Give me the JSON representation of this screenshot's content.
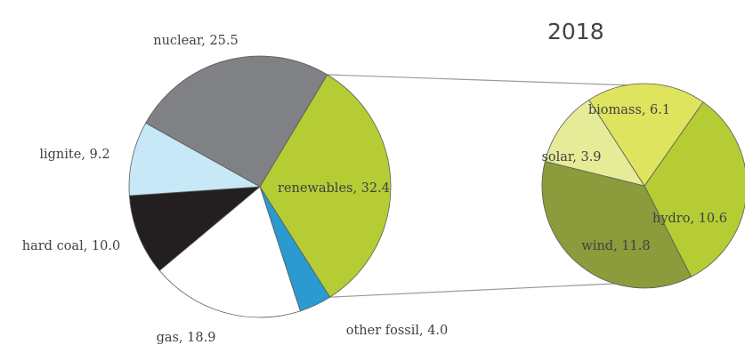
{
  "chart_data": [
    {
      "type": "pie",
      "title": "",
      "categories": [
        "renewables",
        "other fossil",
        "gas",
        "hard coal",
        "lignite",
        "nuclear"
      ],
      "values": [
        32.4,
        4.0,
        18.9,
        10.0,
        9.2,
        25.5
      ],
      "labels": [
        "renewables, 32.4",
        "other fossil, 4.0",
        "gas, 18.9",
        "hard coal, 10.0",
        "lignite, 9.2",
        "nuclear, 25.5"
      ],
      "colors": [
        "#b5cc34",
        "#2b9ad0",
        "#ffffff",
        "#231f20",
        "#c7e8f6",
        "#808184"
      ]
    },
    {
      "type": "pie",
      "title": "2018",
      "categories": [
        "hydro",
        "wind",
        "solar",
        "biomass"
      ],
      "values": [
        10.6,
        11.8,
        3.9,
        6.1
      ],
      "labels": [
        "hydro, 10.6",
        "wind, 11.8",
        "solar, 3.9",
        "biomass, 6.1"
      ],
      "colors": [
        "#b5cc34",
        "#8c9b3b",
        "#e6eb98",
        "#dfe45e"
      ]
    }
  ]
}
